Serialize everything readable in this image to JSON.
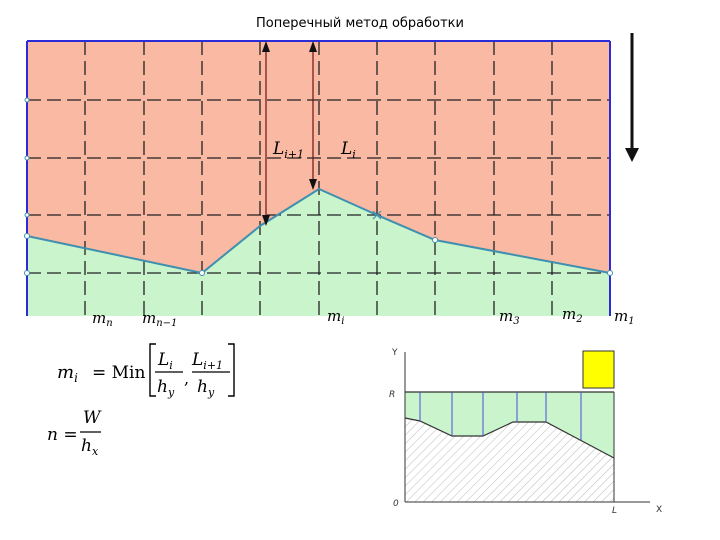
{
  "title": "Поперечный метод обработки",
  "top_diagram": {
    "dist_labels": {
      "li1_main": "L",
      "li1_sub": "i+1",
      "li_main": "L",
      "li_sub": "i"
    },
    "m_labels": [
      {
        "main": "m",
        "sub": "n"
      },
      {
        "main": "m",
        "sub": "n−1"
      },
      {
        "main": "m",
        "sub": "i"
      },
      {
        "main": "m",
        "sub": "3"
      },
      {
        "main": "m",
        "sub": "2"
      },
      {
        "main": "m",
        "sub": "1"
      }
    ],
    "colors": {
      "upper": "#f9b9a2",
      "lower": "#c9f4cc",
      "frame": "#2b2bd8",
      "profile": "#3f8fb0"
    }
  },
  "formulas": {
    "f1_lhs_main": "m",
    "f1_lhs_sub": "i",
    "f1_eq": "= Min",
    "f1_a_num_main": "L",
    "f1_a_num_sub": "i",
    "f1_a_den_main": "h",
    "f1_a_den_sub": "y",
    "f1_b_num_main": "L",
    "f1_b_num_sub": "i+1",
    "f1_b_den_main": "h",
    "f1_b_den_sub": "y",
    "f2_lhs": "n =",
    "f2_num": "W",
    "f2_den_main": "h",
    "f2_den_sub": "x"
  },
  "bottom_diagram": {
    "axis_y": "Y",
    "axis_x": "X",
    "label_r": "R",
    "label_0": "0",
    "label_l": "L",
    "colors": {
      "fill": "#c9f4cc",
      "cutter": "#ffff00",
      "hatch": "#888888"
    }
  }
}
